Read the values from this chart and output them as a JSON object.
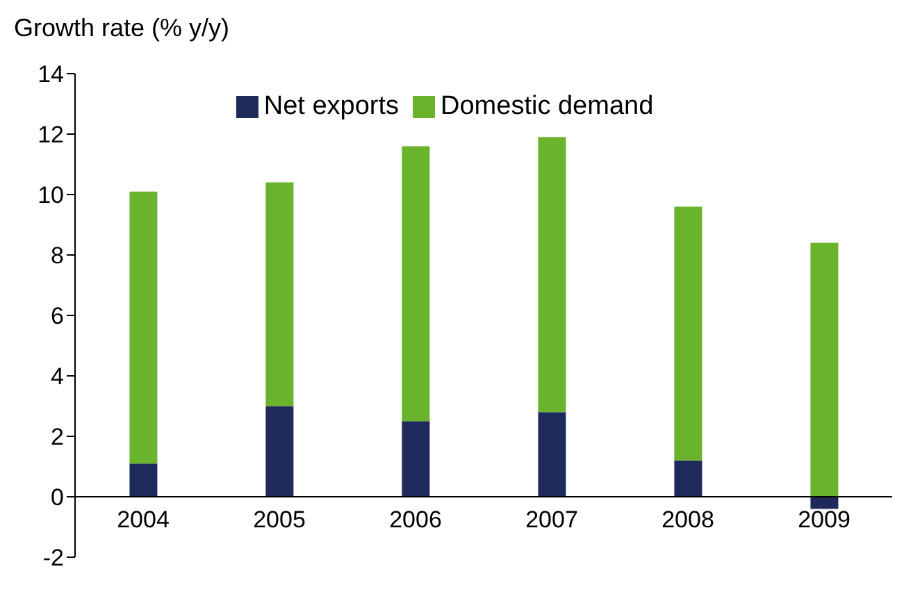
{
  "chart_data": {
    "type": "bar",
    "ylabel": "Growth rate (% y/y)",
    "categories": [
      "2004",
      "2005",
      "2006",
      "2007",
      "2008",
      "2009"
    ],
    "series": [
      {
        "name": "Net exports",
        "color": "#1f2a5c",
        "values": [
          1.1,
          3.0,
          2.5,
          2.8,
          1.2,
          -0.4
        ]
      },
      {
        "name": "Domestic demand",
        "color": "#6ab42d",
        "values": [
          9.0,
          7.4,
          9.1,
          9.1,
          8.4,
          8.4
        ]
      }
    ],
    "stacked": true,
    "ylim": [
      -2,
      14
    ],
    "yticks": [
      -2,
      0,
      2,
      4,
      6,
      8,
      10,
      12,
      14
    ],
    "legend": "top"
  }
}
